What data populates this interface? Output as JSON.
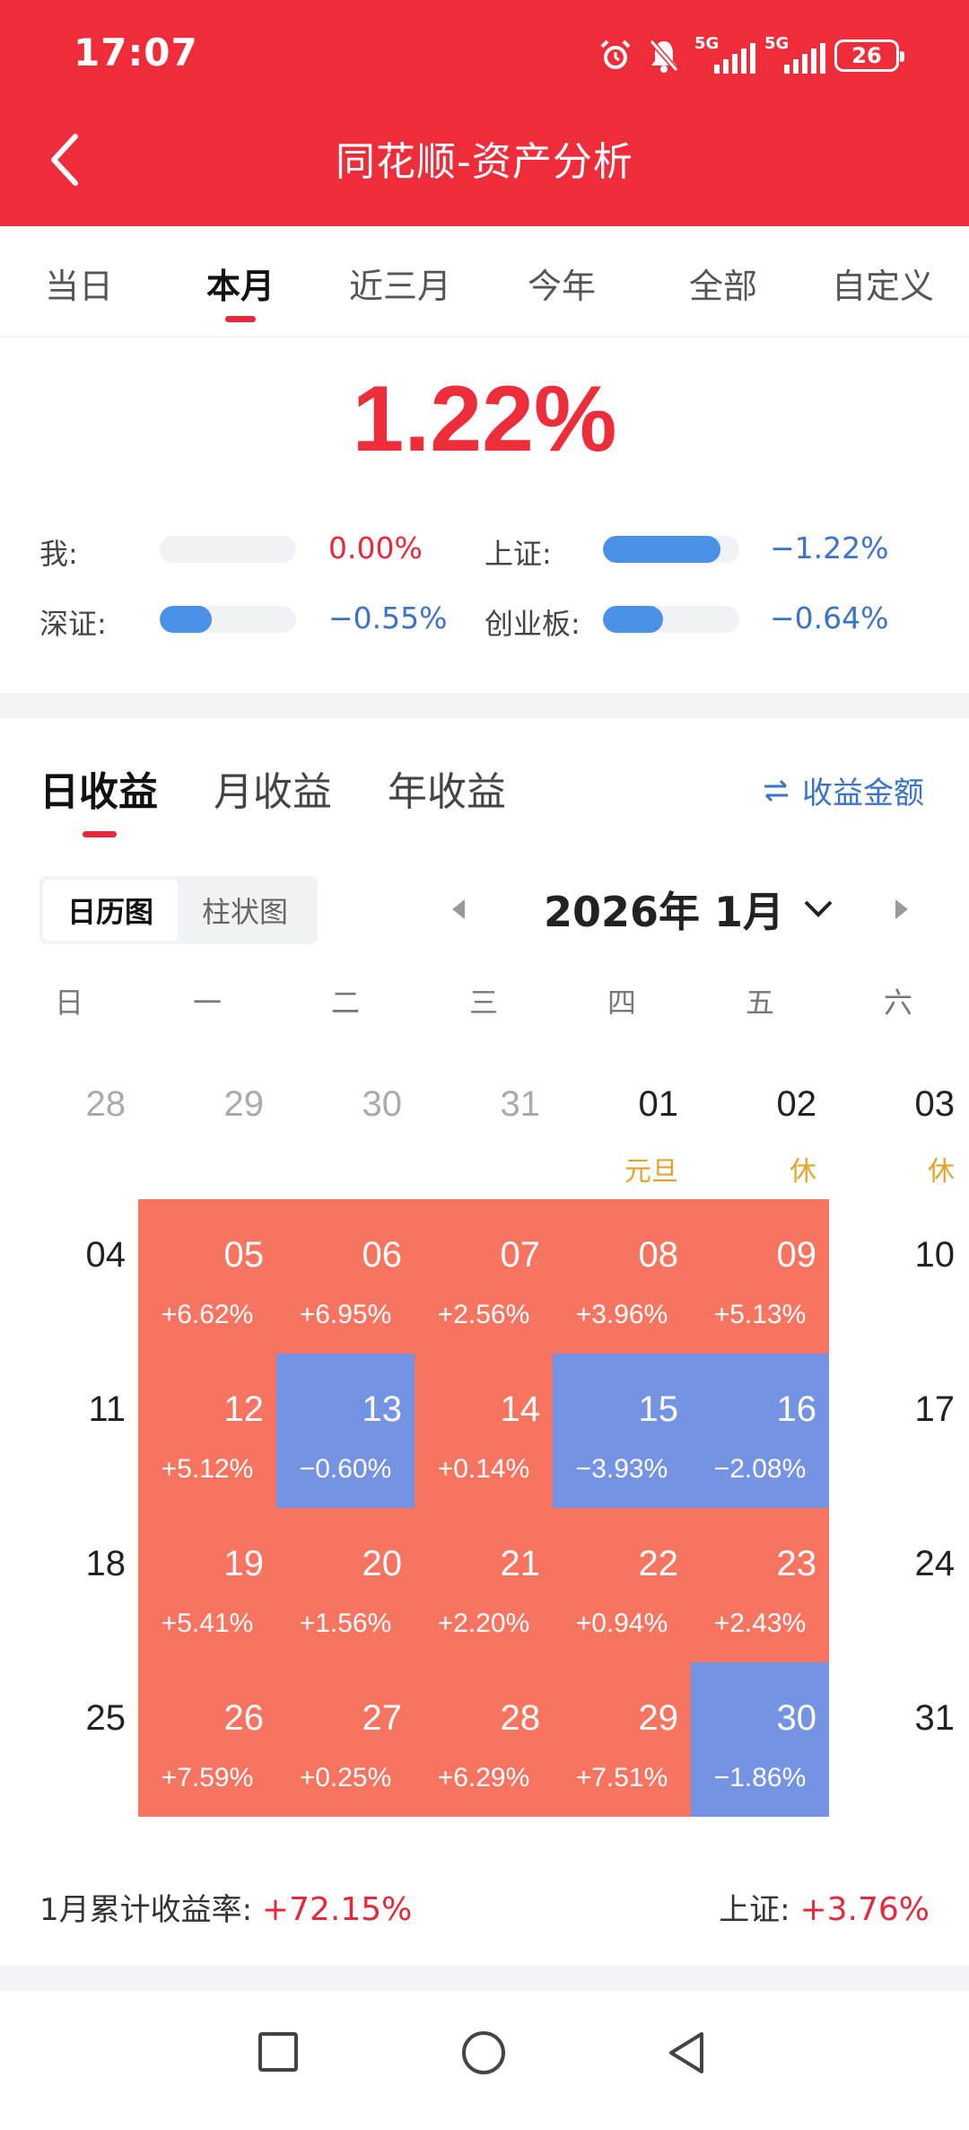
{
  "status_bar": {
    "time": "17:07",
    "signal1": "5G",
    "signal2": "5G",
    "battery": "26"
  },
  "header": {
    "title": "同花顺-资产分析"
  },
  "tabs": [
    {
      "label": "当日"
    },
    {
      "label": "本月"
    },
    {
      "label": "近三月"
    },
    {
      "label": "今年"
    },
    {
      "label": "全部"
    },
    {
      "label": "自定义"
    }
  ],
  "active_tab": "本月",
  "summary": {
    "return_pct": "1.22%",
    "comparisons": [
      {
        "label": "我:",
        "value": "0.00%",
        "bar_fraction": 0.0
      },
      {
        "label": "上证:",
        "value": "−1.22%",
        "bar_fraction": 0.86
      },
      {
        "label": "深证:",
        "value": "−0.55%",
        "bar_fraction": 0.38
      },
      {
        "label": "创业板:",
        "value": "−0.64%",
        "bar_fraction": 0.44
      }
    ]
  },
  "earnings_tabs": [
    "日收益",
    "月收益",
    "年收益"
  ],
  "toggle_amount_label": "收益金额",
  "view_switch": {
    "calendar": "日历图",
    "bar": "柱状图"
  },
  "month_label": "2026年 1月",
  "weekdays": [
    "日",
    "一",
    "二",
    "三",
    "四",
    "五",
    "六"
  ],
  "calendar_weeks": [
    [
      {
        "day": "28",
        "muted": true
      },
      {
        "day": "29",
        "muted": true
      },
      {
        "day": "30",
        "muted": true
      },
      {
        "day": "31",
        "muted": true
      },
      {
        "day": "01",
        "note": "元旦"
      },
      {
        "day": "02",
        "note": "休"
      },
      {
        "day": "03",
        "note": "休"
      }
    ],
    [
      {
        "day": "04"
      },
      {
        "day": "05",
        "pct": "+6.62%",
        "trend": "up"
      },
      {
        "day": "06",
        "pct": "+6.95%",
        "trend": "up"
      },
      {
        "day": "07",
        "pct": "+2.56%",
        "trend": "up"
      },
      {
        "day": "08",
        "pct": "+3.96%",
        "trend": "up"
      },
      {
        "day": "09",
        "pct": "+5.13%",
        "trend": "up"
      },
      {
        "day": "10"
      }
    ],
    [
      {
        "day": "11"
      },
      {
        "day": "12",
        "pct": "+5.12%",
        "trend": "up"
      },
      {
        "day": "13",
        "pct": "−0.60%",
        "trend": "down"
      },
      {
        "day": "14",
        "pct": "+0.14%",
        "trend": "up"
      },
      {
        "day": "15",
        "pct": "−3.93%",
        "trend": "down"
      },
      {
        "day": "16",
        "pct": "−2.08%",
        "trend": "down"
      },
      {
        "day": "17"
      }
    ],
    [
      {
        "day": "18"
      },
      {
        "day": "19",
        "pct": "+5.41%",
        "trend": "up"
      },
      {
        "day": "20",
        "pct": "+1.56%",
        "trend": "up"
      },
      {
        "day": "21",
        "pct": "+2.20%",
        "trend": "up"
      },
      {
        "day": "22",
        "pct": "+0.94%",
        "trend": "up"
      },
      {
        "day": "23",
        "pct": "+2.43%",
        "trend": "up"
      },
      {
        "day": "24"
      }
    ],
    [
      {
        "day": "25"
      },
      {
        "day": "26",
        "pct": "+7.59%",
        "trend": "up"
      },
      {
        "day": "27",
        "pct": "+0.25%",
        "trend": "up"
      },
      {
        "day": "28",
        "pct": "+6.29%",
        "trend": "up"
      },
      {
        "day": "29",
        "pct": "+7.51%",
        "trend": "up"
      },
      {
        "day": "30",
        "pct": "−1.86%",
        "trend": "down"
      },
      {
        "day": "31"
      }
    ]
  ],
  "footer_summary": {
    "cumulative_label": "1月累计收益率:",
    "cumulative_value": "+72.15%",
    "index_label": "上证:",
    "index_value": "+3.76%"
  },
  "colors": {
    "header_red": "#ef2d3a",
    "up": "#f77461",
    "down": "#7493e2",
    "accent_blue": "#3b73c9"
  },
  "icons": [
    "back-arrow-icon",
    "alarm-icon",
    "bell-off-icon",
    "swap-icon",
    "triangle-left-icon",
    "triangle-right-icon",
    "chevron-down-icon",
    "square-icon",
    "circle-icon",
    "back-triangle-icon"
  ]
}
